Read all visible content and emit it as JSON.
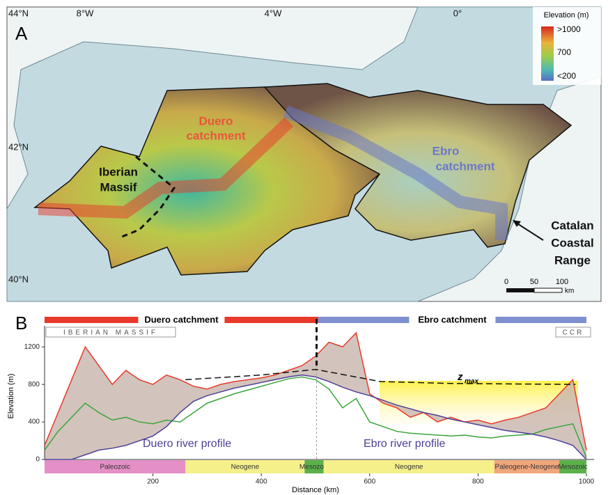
{
  "panel_a": {
    "label": "A",
    "lat_labels": [
      "44°N",
      "42°N",
      "40°N"
    ],
    "lon_labels": [
      "8°W",
      "4°W",
      "0°"
    ],
    "legend": {
      "title": "Elevation (m)",
      "labels": [
        ">1000",
        "700",
        "<200"
      ]
    },
    "annotations": {
      "duero": [
        "Duero",
        "catchment"
      ],
      "iberian": [
        "Iberian",
        "Massif"
      ],
      "ebro": [
        "Ebro",
        "catchment"
      ],
      "catalan": [
        "Catalan",
        "Coastal",
        "Range"
      ]
    },
    "scale_bar": {
      "ticks": [
        0,
        50,
        100
      ],
      "unit": "km"
    }
  },
  "chart_data": {
    "type": "line",
    "panel_label": "B",
    "x_label": "Distance (km)",
    "y_label": "Elevation (m)",
    "xlim": [
      0,
      1000
    ],
    "ylim": [
      0,
      1350
    ],
    "xticks": [
      200,
      400,
      600,
      800,
      1000
    ],
    "yticks": [
      0,
      400,
      800,
      1200
    ],
    "x": [
      0,
      25,
      50,
      75,
      100,
      125,
      150,
      175,
      200,
      225,
      250,
      275,
      300,
      325,
      350,
      375,
      400,
      425,
      450,
      475,
      500,
      525,
      550,
      575,
      600,
      625,
      650,
      675,
      700,
      725,
      750,
      775,
      800,
      825,
      850,
      875,
      900,
      925,
      950,
      975,
      1000
    ],
    "series": [
      {
        "color": "#e8392b",
        "values": [
          150,
          500,
          850,
          1200,
          1000,
          800,
          950,
          850,
          800,
          900,
          850,
          780,
          750,
          800,
          830,
          850,
          870,
          900,
          950,
          1000,
          1100,
          1250,
          1200,
          1350,
          700,
          600,
          550,
          450,
          500,
          400,
          450,
          400,
          420,
          380,
          420,
          450,
          500,
          550,
          700,
          850,
          100
        ]
      },
      {
        "color": "#3aa53a",
        "values": [
          100,
          300,
          450,
          600,
          500,
          420,
          450,
          400,
          380,
          420,
          400,
          500,
          600,
          650,
          700,
          740,
          780,
          820,
          860,
          880,
          850,
          750,
          550,
          650,
          400,
          350,
          300,
          280,
          270,
          260,
          250,
          260,
          240,
          230,
          250,
          260,
          270,
          320,
          350,
          380,
          20
        ]
      },
      {
        "color": "#4b3f98",
        "values": [
          0,
          0,
          0,
          50,
          100,
          120,
          150,
          200,
          250,
          350,
          500,
          620,
          680,
          720,
          760,
          790,
          820,
          850,
          880,
          900,
          880,
          830,
          770,
          720,
          680,
          630,
          580,
          540,
          500,
          470,
          430,
          400,
          370,
          340,
          310,
          290,
          270,
          240,
          200,
          150,
          0
        ]
      }
    ],
    "area_color": "#c8b4ad",
    "zmax": {
      "label": "z",
      "subscript": "max",
      "x": [
        260,
        400,
        500,
        620,
        750,
        980
      ],
      "values": [
        850,
        900,
        960,
        830,
        810,
        800
      ]
    },
    "divide": 502,
    "annotations": [
      "Duero river profile",
      "Ebro river profile"
    ],
    "catchments": [
      {
        "name": "Duero catchment",
        "start": 0,
        "end": 505,
        "color": "#e8392b"
      },
      {
        "name": "Ebro catchment",
        "start": 505,
        "end": 1000,
        "color": "#7f8fd0"
      }
    ],
    "regions": [
      "IBERIAN MASSIF",
      "CCR"
    ],
    "eras": [
      {
        "name": "Paleozoic",
        "start": 0,
        "end": 260,
        "color": "#e48fc6"
      },
      {
        "name": "Neogene",
        "start": 260,
        "end": 480,
        "color": "#f5f08a"
      },
      {
        "name": "Mesozoic",
        "start": 480,
        "end": 515,
        "color": "#5bb04a"
      },
      {
        "name": "Neogene",
        "start": 515,
        "end": 830,
        "color": "#f5f08a"
      },
      {
        "name": "Paleogene-Neogene",
        "start": 830,
        "end": 950,
        "color": "#f0a77c"
      },
      {
        "name": "Mesozoic",
        "start": 950,
        "end": 1000,
        "color": "#5bb04a"
      }
    ]
  }
}
